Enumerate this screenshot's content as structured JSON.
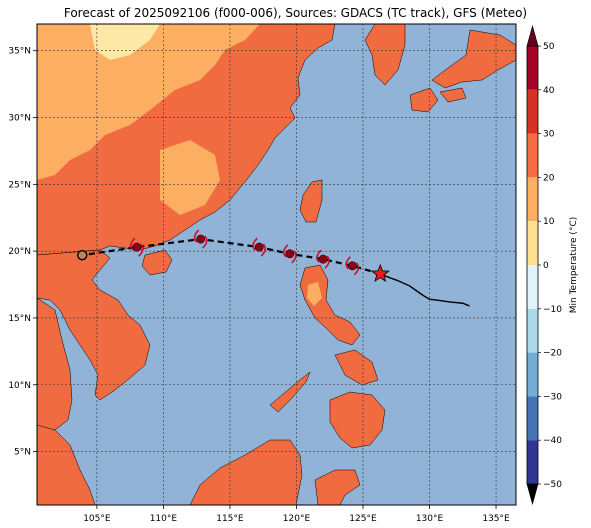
{
  "title": "Forecast of 2025092106 (f000-006), Sources: GDACS (TC track), GFS (Meteo)",
  "colors": {
    "ocean": "#91b3d8",
    "land_hot": "#f06b40",
    "land_warm": "#fcae63",
    "land_mild": "#fee8a7",
    "track": "#000000",
    "storm_marker": "#8b0016",
    "storm_symbol": "#c8102e",
    "current_star": "#e41a1c"
  },
  "map": {
    "lon_range": [
      100.5,
      136.5
    ],
    "lat_range": [
      1.0,
      37.0
    ],
    "lon_ticks": [
      {
        "value": 105,
        "label": "105°E"
      },
      {
        "value": 110,
        "label": "110°E"
      },
      {
        "value": 115,
        "label": "115°E"
      },
      {
        "value": 120,
        "label": "120°E"
      },
      {
        "value": 125,
        "label": "125°E"
      },
      {
        "value": 130,
        "label": "130°E"
      },
      {
        "value": 135,
        "label": "135°E"
      }
    ],
    "lat_ticks": [
      {
        "value": 5,
        "label": "5°N"
      },
      {
        "value": 10,
        "label": "10°N"
      },
      {
        "value": 15,
        "label": "15°N"
      },
      {
        "value": 20,
        "label": "20°N"
      },
      {
        "value": 25,
        "label": "25°N"
      },
      {
        "value": 30,
        "label": "30°N"
      },
      {
        "value": 35,
        "label": "35°N"
      }
    ]
  },
  "tc_track": {
    "observed_path": [
      [
        133.0,
        15.9
      ],
      [
        132.5,
        16.1
      ],
      [
        131.5,
        16.2
      ],
      [
        130.8,
        16.3
      ],
      [
        130.0,
        16.4
      ],
      [
        129.5,
        16.7
      ],
      [
        128.5,
        17.4
      ],
      [
        127.6,
        17.8
      ],
      [
        126.5,
        18.2
      ]
    ],
    "current_position": [
      126.3,
      18.3
    ],
    "forecast_points": [
      [
        124.2,
        18.9
      ],
      [
        122.0,
        19.4
      ],
      [
        119.5,
        19.8
      ],
      [
        117.2,
        20.3
      ],
      [
        112.8,
        20.9
      ],
      [
        108.0,
        20.3
      ],
      [
        103.9,
        19.7
      ]
    ],
    "storm_symbols": [
      [
        124.2,
        18.9
      ],
      [
        122.0,
        19.4
      ],
      [
        119.5,
        19.8
      ],
      [
        117.2,
        20.3
      ],
      [
        112.8,
        20.9
      ],
      [
        108.0,
        20.3
      ]
    ],
    "final_position": [
      103.9,
      19.7
    ]
  },
  "colorbar": {
    "label": "Min Temperature (°C)",
    "ticks": [
      {
        "value": 50,
        "label": "50"
      },
      {
        "value": 40,
        "label": "40"
      },
      {
        "value": 30,
        "label": "30"
      },
      {
        "value": 20,
        "label": "20"
      },
      {
        "value": 10,
        "label": "10"
      },
      {
        "value": 0,
        "label": "0"
      },
      {
        "value": -10,
        "label": "−10"
      },
      {
        "value": -20,
        "label": "−20"
      },
      {
        "value": -30,
        "label": "−30"
      },
      {
        "value": -40,
        "label": "−40"
      },
      {
        "value": -50,
        "label": "−50"
      }
    ],
    "bands": [
      {
        "from": 40,
        "to": 50,
        "color": "#a50026"
      },
      {
        "from": 30,
        "to": 40,
        "color": "#d73027"
      },
      {
        "from": 20,
        "to": 30,
        "color": "#f46d43"
      },
      {
        "from": 10,
        "to": 20,
        "color": "#fdae61"
      },
      {
        "from": 0,
        "to": 10,
        "color": "#fee090"
      },
      {
        "from": -10,
        "to": 0,
        "color": "#e0f3f8"
      },
      {
        "from": -20,
        "to": -10,
        "color": "#abd9e9"
      },
      {
        "from": -30,
        "to": -20,
        "color": "#74add1"
      },
      {
        "from": -40,
        "to": -30,
        "color": "#4575b4"
      },
      {
        "from": -50,
        "to": -40,
        "color": "#313695"
      }
    ]
  }
}
